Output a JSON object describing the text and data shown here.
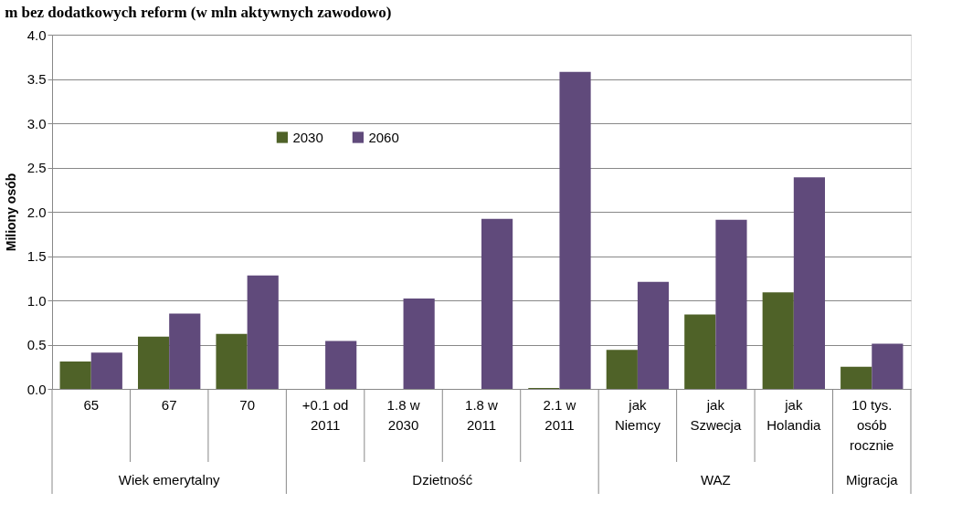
{
  "chart_data": {
    "type": "bar",
    "title": "m bez dodatkowych reform (w mln aktywnych zawodowo)",
    "ylabel": "Miliony osób",
    "categories": [
      "65",
      "67",
      "70",
      "+0.1 od 2011",
      "1.8 w 2030",
      "1.8 w 2011",
      "2.1 w 2011",
      "jak Niemcy",
      "jak Szwecja",
      "jak Holandia",
      "10 tys. osób rocznie"
    ],
    "series": [
      {
        "name": "2030",
        "color": "#4f6228",
        "values": [
          0.31,
          0.59,
          0.62,
          0,
          0,
          0,
          0.01,
          0.44,
          0.84,
          1.09,
          0.25
        ]
      },
      {
        "name": "2060",
        "color": "#604a7b",
        "values": [
          0.41,
          0.85,
          1.28,
          0.54,
          1.02,
          1.92,
          3.58,
          1.21,
          1.91,
          2.39,
          0.51
        ]
      }
    ],
    "annotations": [
      "Wiek emerytalny",
      "Dzietność",
      "WAZ",
      "Migracja"
    ],
    "ylim": [
      0,
      4
    ],
    "yticks": [
      {
        "value": 0,
        "label": "0.0"
      },
      {
        "value": 0.5,
        "label": "0.5"
      },
      {
        "value": 1,
        "label": "1.0"
      },
      {
        "value": 1.5,
        "label": "1.5"
      },
      {
        "value": 2,
        "label": "2.0"
      },
      {
        "value": 2.5,
        "label": "2.5"
      },
      {
        "value": 3,
        "label": "3.0"
      },
      {
        "value": 3.5,
        "label": "3.5"
      },
      {
        "value": 4,
        "label": "4.0"
      }
    ],
    "grid": "y",
    "legend": "top"
  }
}
